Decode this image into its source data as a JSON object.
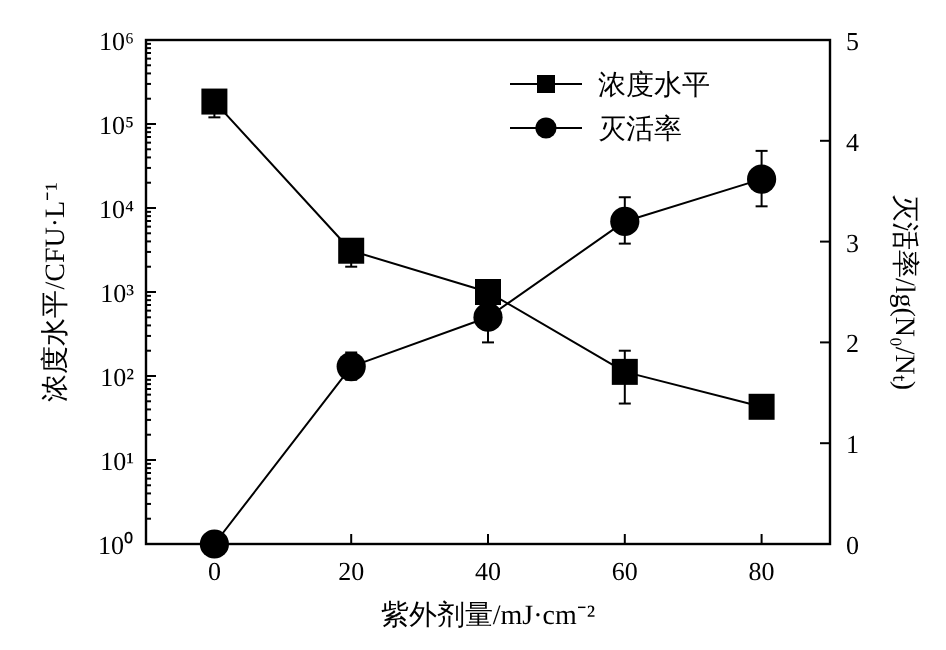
{
  "chart_data": {
    "type": "line",
    "xlabel": "紫外剂量/mJ·cm⁻²",
    "ylabel": "浓度水平/CFU·L⁻¹",
    "y2label": "灭活率/lg(N₀/Nₜ)",
    "x": [
      0,
      20,
      40,
      60,
      80
    ],
    "xlim": [
      -10,
      90
    ],
    "xticks": [
      0,
      20,
      40,
      60,
      80
    ],
    "log": "y",
    "ylim": [
      1,
      1000000
    ],
    "yticks": [
      {
        "value": 1,
        "label": "10⁰"
      },
      {
        "value": 10,
        "label": "10¹"
      },
      {
        "value": 100,
        "label": "10²"
      },
      {
        "value": 1000,
        "label": "10³"
      },
      {
        "value": 10000,
        "label": "10⁴"
      },
      {
        "value": 100000,
        "label": "10⁵"
      },
      {
        "value": 1000000,
        "label": "10⁶"
      }
    ],
    "y2lim": [
      0,
      5
    ],
    "y2ticks": [
      0,
      1,
      2,
      3,
      4,
      5
    ],
    "series": [
      {
        "name": "浓度水平",
        "color": "#000000",
        "marker": "square",
        "values": [
          185000,
          3100,
          1000,
          112,
          43
        ],
        "errors": [
          [
            120000,
            185000
          ],
          [
            2000,
            3100
          ],
          null,
          [
            47,
            200
          ],
          null
        ]
      },
      {
        "name": "灭活率",
        "color": "#000000",
        "marker": "circle",
        "axis": "y2",
        "values": [
          0,
          1.76,
          2.25,
          3.2,
          3.62
        ],
        "errors": [
          null,
          [
            1.63,
            1.9
          ],
          [
            2.0,
            2.25
          ],
          [
            2.98,
            3.44
          ],
          [
            3.35,
            3.9
          ]
        ]
      }
    ],
    "legend": "top right",
    "grid": false
  }
}
